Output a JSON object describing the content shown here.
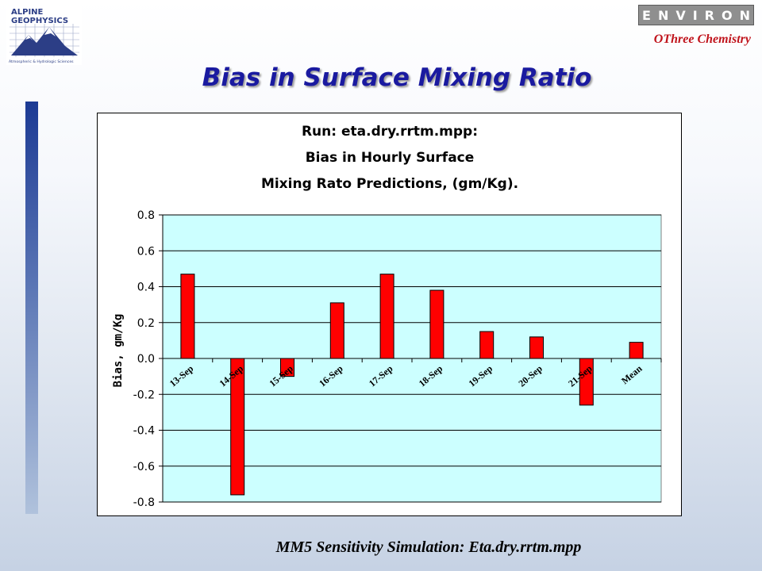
{
  "header": {
    "logo_line1": "ALPINE",
    "logo_line2": "GEOPHYSICS",
    "logo_tagline": "Atmospheric & Hydrologic Sciences",
    "environ_label": "ENVIRON",
    "othree_label": "OThree Chemistry"
  },
  "slide": {
    "title": "Bias in Surface Mixing Ratio",
    "footer": "MM5 Sensitivity Simulation:  Eta.dry.rrtm.mpp"
  },
  "colors": {
    "bar": "#ff0000",
    "plot_bg": "#ccffff",
    "title_blue": "#1a1aa0",
    "brand_red": "#c0141c"
  },
  "chart_data": {
    "type": "bar",
    "title_lines": [
      "Run: eta.dry.rrtm.mpp:",
      "Bias in Hourly Surface",
      "Mixing Rato Predictions, (gm/Kg)."
    ],
    "xlabel": "",
    "ylabel": "Bias, gm/Kg",
    "categories": [
      "13-Sep",
      "14-Sep",
      "15-Sep",
      "16-Sep",
      "17-Sep",
      "18-Sep",
      "19-Sep",
      "20-Sep",
      "21-Sep",
      "Mean"
    ],
    "values": [
      0.47,
      -0.76,
      -0.1,
      0.31,
      0.47,
      0.38,
      0.15,
      0.12,
      -0.26,
      0.09
    ],
    "ylim": [
      -0.8,
      0.8
    ],
    "yticks": [
      "0.8",
      "0.6",
      "0.4",
      "0.2",
      "0.0",
      "-0.2",
      "-0.4",
      "-0.6",
      "-0.8"
    ],
    "grid": true,
    "legend": "none"
  }
}
